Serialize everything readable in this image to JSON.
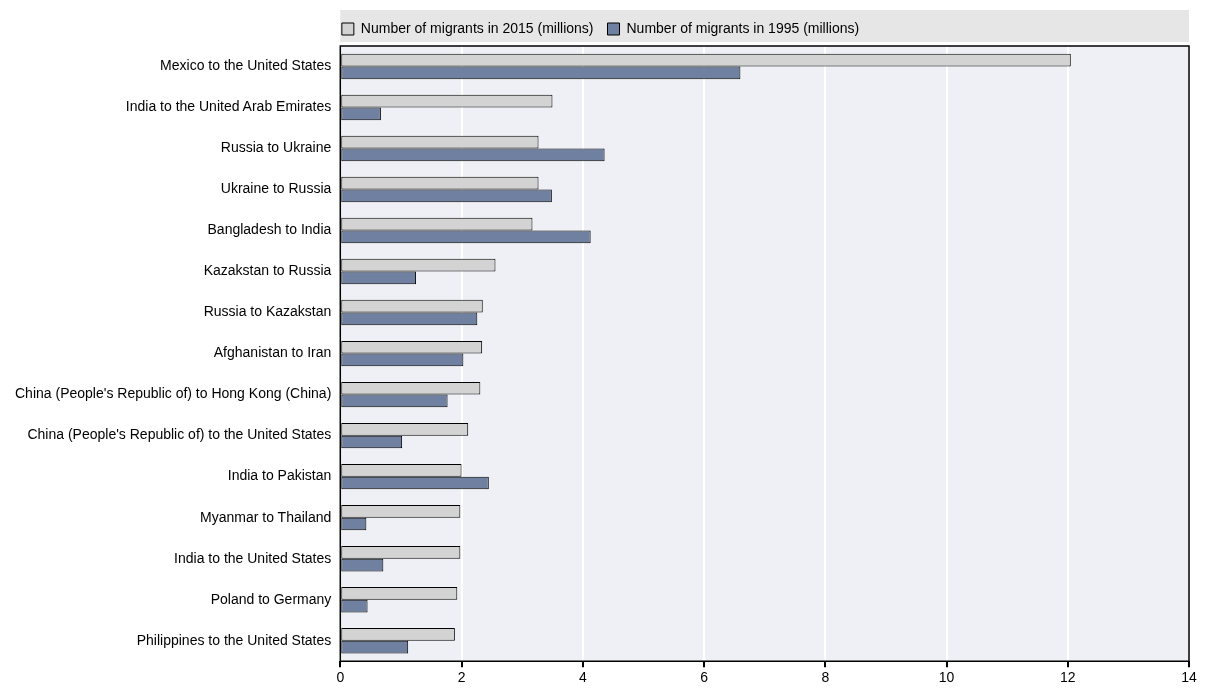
{
  "chart_data": {
    "type": "bar",
    "orientation": "horizontal",
    "categories": [
      "Mexico to the United States",
      "India to the United Arab Emirates",
      "Russia to Ukraine",
      "Ukraine to Russia",
      "Bangladesh to India",
      "Kazakstan to Russia",
      "Russia to Kazakstan",
      "Afghanistan to Iran",
      "China (People's Republic of) to Hong Kong (China)",
      "China (People's Republic of) to the United States",
      "India to Pakistan",
      "Myanmar to Thailand",
      "India to the United States",
      "Poland to Germany",
      "Philippines to the United States"
    ],
    "series": [
      {
        "name": "Number of migrants in 2015 (millions)",
        "color": "#d3d3d3",
        "values": [
          12.05,
          3.5,
          3.27,
          3.27,
          3.17,
          2.56,
          2.35,
          2.34,
          2.31,
          2.11,
          2.0,
          1.98,
          1.98,
          1.93,
          1.89
        ]
      },
      {
        "name": "Number of migrants in 1995 (millions)",
        "color": "#7080a0",
        "values": [
          6.6,
          0.67,
          4.36,
          3.49,
          4.13,
          1.25,
          2.26,
          2.03,
          1.77,
          1.02,
          2.45,
          0.43,
          0.71,
          0.45,
          1.12
        ]
      }
    ],
    "xlim": [
      0,
      14
    ],
    "xticks": [
      0,
      2,
      4,
      6,
      8,
      10,
      12,
      14
    ],
    "grid": "x",
    "legend": "top"
  }
}
